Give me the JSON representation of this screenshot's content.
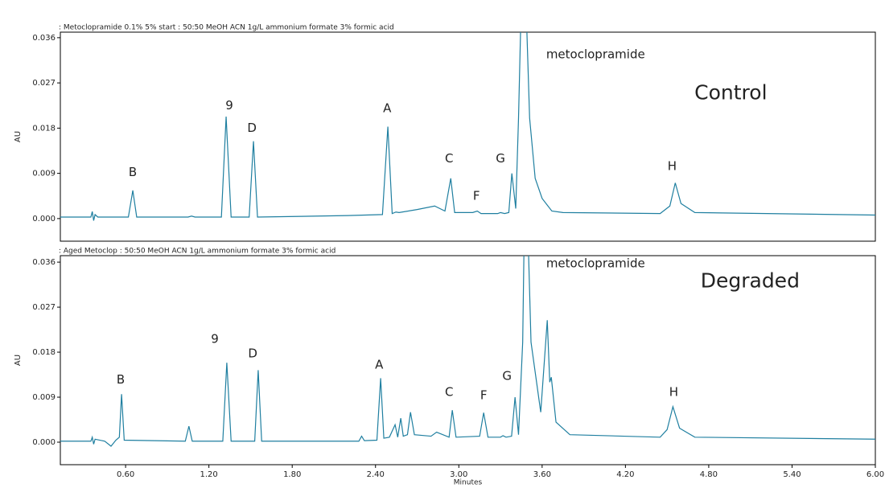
{
  "chart_data": [
    {
      "type": "line",
      "title": ": Metoclopramide 0.1% 5% start : 50:50 MeOH ACN 1g/L ammonium formate 3% formic acid",
      "y_label": "AU",
      "label": {
        "text": "Control",
        "x": 4.959,
        "y": 0.0249
      },
      "xlim": [
        0.13,
        6.0
      ],
      "ylim": [
        -0.0045,
        0.0371
      ],
      "yticks": [
        {
          "value": 0,
          "label": "0.000"
        },
        {
          "value": 0.009,
          "label": "0.009"
        },
        {
          "value": 0.018,
          "label": "0.018"
        },
        {
          "value": 0.027,
          "label": "0.027"
        },
        {
          "value": 0.036,
          "label": "0.036"
        }
      ],
      "series": [
        {
          "color": "#1f7fa0",
          "x": [
            0.13,
            0.35,
            0.36,
            0.37,
            0.38,
            0.4,
            0.62,
            0.652,
            0.68,
            1.05,
            1.075,
            1.1,
            1.29,
            1.324,
            1.36,
            1.49,
            1.521,
            1.55,
            2.2,
            2.45,
            2.489,
            2.52,
            2.547,
            2.57,
            2.7,
            2.826,
            2.9,
            2.942,
            2.97,
            3.1,
            3.133,
            3.16,
            3.28,
            3.3,
            3.33,
            3.36,
            3.382,
            3.41,
            3.43,
            3.464,
            3.51,
            3.55,
            3.6,
            3.67,
            3.75,
            4.45,
            4.52,
            4.559,
            4.6,
            4.7,
            6.0
          ],
          "values": [
            0.0003,
            0.0003,
            0.0014,
            -0.0004,
            0.0008,
            0.0003,
            0.0003,
            0.0056,
            0.0003,
            0.0003,
            0.0005,
            0.0003,
            0.0003,
            0.0203,
            0.0003,
            0.0003,
            0.0154,
            0.0003,
            0.0006,
            0.0008,
            0.0183,
            0.001,
            0.0013,
            0.0012,
            0.0018,
            0.0025,
            0.0015,
            0.008,
            0.0012,
            0.0012,
            0.0015,
            0.001,
            0.001,
            0.0012,
            0.001,
            0.0012,
            0.009,
            0.002,
            0.02,
            0.06,
            0.02,
            0.008,
            0.004,
            0.0015,
            0.0012,
            0.001,
            0.0025,
            0.0071,
            0.003,
            0.0012,
            0.0007
          ]
        }
      ],
      "annotations": [
        {
          "text": "B",
          "x": 0.652,
          "y": 0.0092
        },
        {
          "text": "9",
          "x": 1.347,
          "y": 0.0225
        },
        {
          "text": "D",
          "x": 1.51,
          "y": 0.018
        },
        {
          "text": "A",
          "x": 2.484,
          "y": 0.0219
        },
        {
          "text": "C",
          "x": 2.93,
          "y": 0.0119
        },
        {
          "text": "F",
          "x": 3.127,
          "y": 0.0045
        },
        {
          "text": "G",
          "x": 3.3,
          "y": 0.0119
        },
        {
          "text": "H",
          "x": 4.536,
          "y": 0.0104
        },
        {
          "text": "metoclopramide",
          "x": 3.985,
          "y": 0.0326
        }
      ]
    },
    {
      "type": "line",
      "title": ": Aged Metoclop : 50:50 MeOH ACN 1g/L ammonium formate 3% formic acid",
      "y_label": "AU",
      "x_label": "Minutes",
      "label": {
        "text": "Degraded",
        "x": 5.098,
        "y": 0.0321
      },
      "xlim": [
        0.13,
        6.0
      ],
      "ylim": [
        -0.0045,
        0.0373
      ],
      "xticks": [
        {
          "value": 0.6,
          "label": "0.60"
        },
        {
          "value": 1.2,
          "label": "1.20"
        },
        {
          "value": 1.8,
          "label": "1.80"
        },
        {
          "value": 2.4,
          "label": "2.40"
        },
        {
          "value": 3.0,
          "label": "3.00"
        },
        {
          "value": 3.6,
          "label": "3.60"
        },
        {
          "value": 4.2,
          "label": "4.20"
        },
        {
          "value": 4.8,
          "label": "4.80"
        },
        {
          "value": 5.4,
          "label": "5.40"
        },
        {
          "value": 6.0,
          "label": "6.00"
        }
      ],
      "yticks": [
        {
          "value": 0,
          "label": "0.000"
        },
        {
          "value": 0.009,
          "label": "0.009"
        },
        {
          "value": 0.018,
          "label": "0.018"
        },
        {
          "value": 0.027,
          "label": "0.027"
        },
        {
          "value": 0.036,
          "label": "0.036"
        }
      ],
      "series": [
        {
          "color": "#1f7fa0",
          "x": [
            0.13,
            0.35,
            0.36,
            0.37,
            0.38,
            0.45,
            0.495,
            0.53,
            0.555,
            0.571,
            0.59,
            1.03,
            1.056,
            1.08,
            1.3,
            1.329,
            1.36,
            1.53,
            1.555,
            1.58,
            2.28,
            2.3,
            2.32,
            2.41,
            2.437,
            2.46,
            2.5,
            2.541,
            2.56,
            2.582,
            2.6,
            2.63,
            2.652,
            2.68,
            2.8,
            2.84,
            2.93,
            2.953,
            2.98,
            3.15,
            3.179,
            3.21,
            3.3,
            3.318,
            3.34,
            3.38,
            3.405,
            3.43,
            3.46,
            3.48,
            3.52,
            3.59,
            3.637,
            3.655,
            3.666,
            3.7,
            3.8,
            4.45,
            4.5,
            4.542,
            4.59,
            4.7,
            6.0
          ],
          "values": [
            0.0002,
            0.0002,
            0.001,
            -0.0004,
            0.0006,
            0.0002,
            -0.0008,
            0.0004,
            0.001,
            0.0096,
            0.0004,
            0.0002,
            0.0032,
            0.0002,
            0.0002,
            0.0159,
            0.0002,
            0.0002,
            0.0144,
            0.0002,
            0.0002,
            0.0012,
            0.0003,
            0.0004,
            0.0128,
            0.0008,
            0.001,
            0.0035,
            0.001,
            0.0048,
            0.0012,
            0.0015,
            0.006,
            0.0015,
            0.0012,
            0.002,
            0.001,
            0.0064,
            0.001,
            0.0012,
            0.0059,
            0.001,
            0.001,
            0.0013,
            0.001,
            0.0012,
            0.009,
            0.0015,
            0.02,
            0.06,
            0.02,
            0.006,
            0.0244,
            0.012,
            0.013,
            0.004,
            0.0015,
            0.001,
            0.0025,
            0.0071,
            0.0028,
            0.001,
            0.0006
          ]
        }
      ],
      "annotations": [
        {
          "text": "B",
          "x": 0.565,
          "y": 0.0125
        },
        {
          "text": "9",
          "x": 1.243,
          "y": 0.0206
        },
        {
          "text": "D",
          "x": 1.516,
          "y": 0.0177
        },
        {
          "text": "A",
          "x": 2.426,
          "y": 0.0154
        },
        {
          "text": "C",
          "x": 2.93,
          "y": 0.01
        },
        {
          "text": "F",
          "x": 3.179,
          "y": 0.0093
        },
        {
          "text": "G",
          "x": 3.347,
          "y": 0.0132
        },
        {
          "text": "H",
          "x": 4.548,
          "y": 0.01
        },
        {
          "text": "metoclopramide",
          "x": 3.985,
          "y": 0.0357
        }
      ]
    }
  ]
}
